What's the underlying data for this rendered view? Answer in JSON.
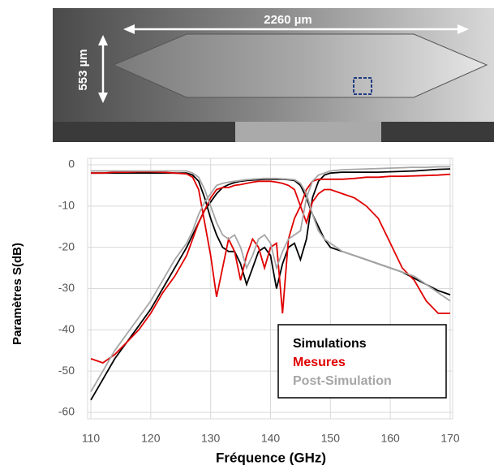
{
  "image_labels": {
    "length": "2260 µm",
    "width": "553 µm"
  },
  "chart_data": {
    "type": "line",
    "x_label": "Fréquence (GHz)",
    "y_label": "Paramètres S(dB)",
    "x": [
      110,
      112,
      114,
      116,
      118,
      120,
      122,
      124,
      126,
      127,
      128,
      129,
      130,
      131,
      132,
      133,
      134,
      135,
      136,
      137,
      138,
      139,
      140,
      141,
      142,
      143,
      144,
      145,
      146,
      147,
      148,
      149,
      150,
      152,
      154,
      156,
      158,
      160,
      162,
      164,
      166,
      168,
      170
    ],
    "series": [
      {
        "name": "Simulations",
        "color": "#000000",
        "values": [
          -57,
          -52,
          -47,
          -43,
          -39,
          -35,
          -30,
          -25,
          -20,
          -17,
          -14,
          -11,
          -9,
          -7,
          -5.5,
          -4.8,
          -4.3,
          -4,
          -3.8,
          -3.7,
          -3.6,
          -3.5,
          -3.5,
          -3.5,
          -3.5,
          -3.6,
          -3.8,
          -5,
          -8,
          -12,
          -15,
          -18,
          -20,
          -21,
          -22,
          -23,
          -24,
          -25,
          -26,
          -27.5,
          -29,
          -30.5,
          -31.5
        ],
        "values2": [
          -2,
          -2,
          -2,
          -2,
          -2,
          -2,
          -2,
          -2,
          -2,
          -2.5,
          -4,
          -8,
          -13,
          -17,
          -20,
          -21,
          -21,
          -24,
          -29,
          -25,
          -21,
          -20,
          -22,
          -30,
          -24,
          -20,
          -19,
          -23,
          -18,
          -8,
          -4,
          -2.5,
          -2,
          -1.8,
          -1.8,
          -1.8,
          -1.8,
          -1.7,
          -1.6,
          -1.5,
          -1.3,
          -1.1,
          -1
        ]
      },
      {
        "name": "Mesures",
        "color": "#e00000",
        "values": [
          -47,
          -48,
          -46,
          -43,
          -40,
          -36,
          -31,
          -27,
          -22,
          -18,
          -14,
          -11,
          -8,
          -6,
          -5.5,
          -5.5,
          -5,
          -4.8,
          -4.5,
          -4.2,
          -4,
          -4,
          -4,
          -4.2,
          -4.5,
          -5,
          -6,
          -10,
          -14,
          -9,
          -7,
          -6,
          -6,
          -7,
          -8,
          -10,
          -13,
          -19,
          -25,
          -28,
          -33,
          -36,
          -36
        ],
        "values2": [
          -2,
          -2,
          -1.8,
          -1.8,
          -1.7,
          -1.7,
          -1.8,
          -2,
          -2.2,
          -3,
          -6,
          -14,
          -22,
          -32,
          -25,
          -18,
          -21,
          -28,
          -22,
          -18,
          -20,
          -25,
          -20,
          -19,
          -36,
          -18,
          -13,
          -10,
          -6,
          -4,
          -3.5,
          -3.5,
          -3.5,
          -3.5,
          -3.3,
          -3,
          -3,
          -2.8,
          -2.8,
          -2.7,
          -2.6,
          -2.5,
          -2.3
        ]
      },
      {
        "name": "Post-Simulation",
        "color": "#a6a6a6",
        "values": [
          -55,
          -50,
          -45,
          -41,
          -37,
          -33,
          -28,
          -23,
          -19,
          -16,
          -12,
          -9,
          -7,
          -5,
          -4.5,
          -4.2,
          -4,
          -3.8,
          -3.6,
          -3.5,
          -3.4,
          -3.3,
          -3.3,
          -3.3,
          -3.4,
          -3.5,
          -3.6,
          -4.5,
          -7,
          -12,
          -16,
          -18,
          -19,
          -21,
          -22,
          -23,
          -24,
          -25,
          -26,
          -27,
          -29,
          -31,
          -33
        ],
        "values2": [
          -1.5,
          -1.5,
          -1.5,
          -1.5,
          -1.5,
          -1.5,
          -1.5,
          -1.5,
          -1.5,
          -2,
          -3,
          -6,
          -10,
          -14,
          -17,
          -18,
          -17,
          -20,
          -25,
          -22,
          -18,
          -17,
          -19,
          -25,
          -21,
          -18,
          -17,
          -16,
          -8,
          -4,
          -2.5,
          -2,
          -1.5,
          -1.2,
          -1.1,
          -1,
          -0.9,
          -0.8,
          -0.7,
          -0.6,
          -0.6,
          -0.5,
          -0.5
        ]
      }
    ],
    "xlim": [
      110,
      170
    ],
    "xticks": [
      110,
      120,
      130,
      140,
      150,
      160,
      170
    ],
    "ylim": [
      -60,
      0
    ],
    "yticks": [
      0,
      -10,
      -20,
      -30,
      -40,
      -50,
      -60
    ],
    "grid": true
  }
}
